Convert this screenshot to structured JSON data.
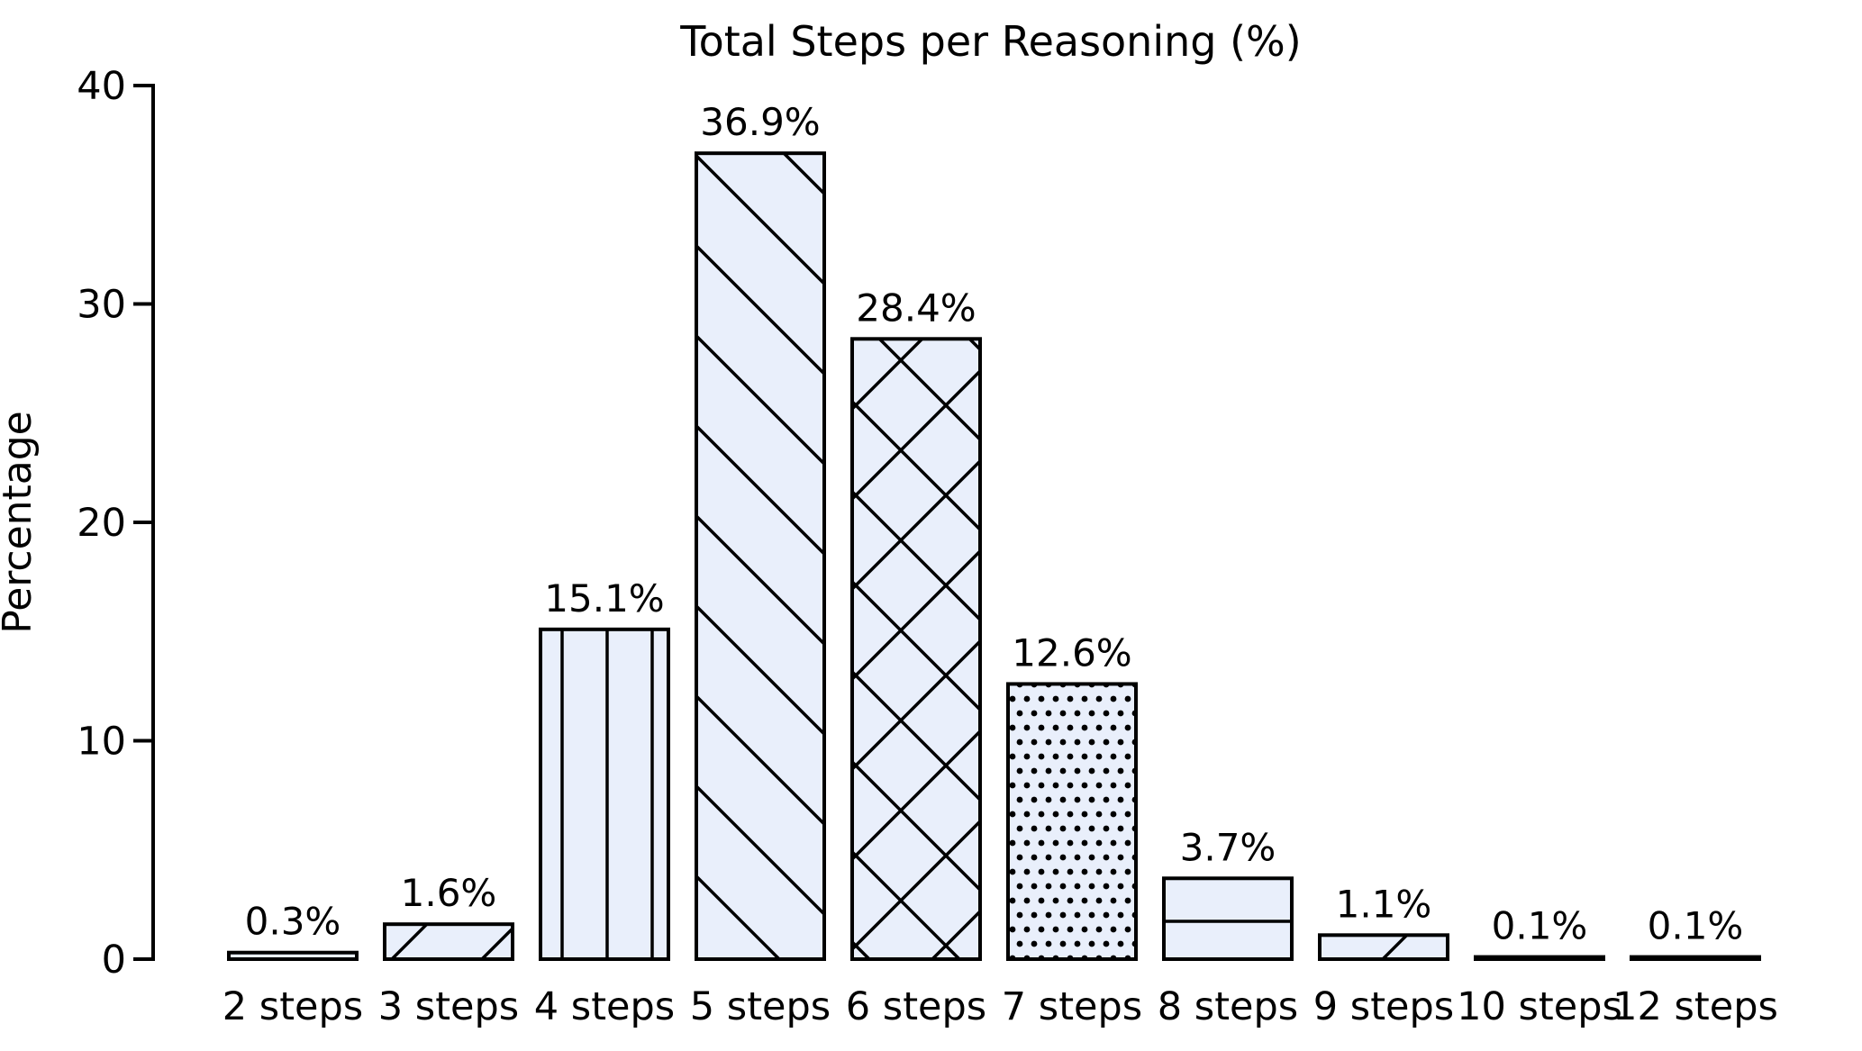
{
  "chart_data": {
    "type": "bar",
    "title": "Total Steps per Reasoning (%)",
    "ylabel": "Percentage",
    "xlabel": "",
    "categories": [
      "2 steps",
      "3 steps",
      "4 steps",
      "5 steps",
      "6 steps",
      "7 steps",
      "8 steps",
      "9 steps",
      "10 steps",
      "12 steps"
    ],
    "values": [
      0.3,
      1.6,
      15.1,
      36.9,
      28.4,
      12.6,
      3.7,
      1.1,
      0.1,
      0.1
    ],
    "bar_value_labels": [
      "0.3%",
      "1.6%",
      "15.1%",
      "36.9%",
      "28.4%",
      "12.6%",
      "3.7%",
      "1.1%",
      "0.1%",
      "0.1%"
    ],
    "hatches": [
      "-",
      "/",
      "|",
      "\\",
      "x",
      ".",
      "-",
      "/",
      "|",
      "\\"
    ],
    "ytick_labels": [
      "0",
      "10",
      "20",
      "30",
      "40"
    ],
    "ytick_values": [
      0,
      10,
      20,
      30,
      40
    ],
    "ylim": [
      0,
      40
    ],
    "grid": false,
    "legend_position": "none",
    "bar_fill_color": "#E9EFFB",
    "bar_edge_color": "#000000",
    "hatch_color": "#000000",
    "axis_color": "#000000",
    "background_color": "#ffffff"
  }
}
